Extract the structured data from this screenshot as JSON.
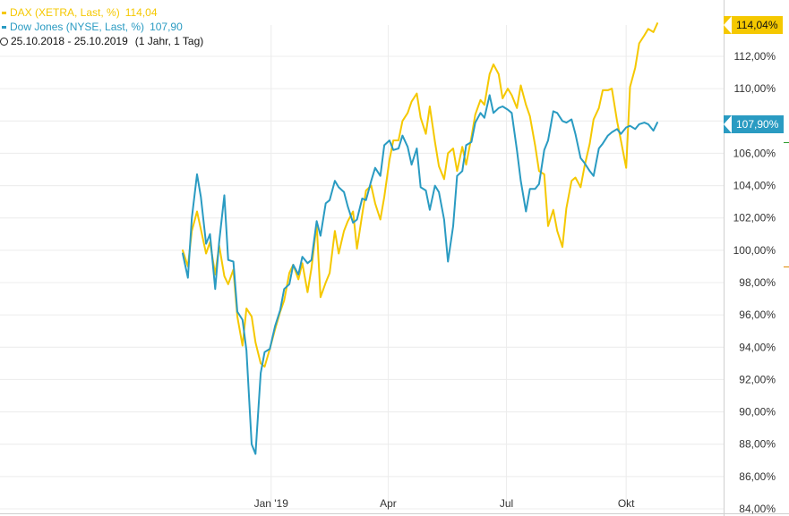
{
  "legend": {
    "series": [
      {
        "label": "DAX (XETRA, Last, %)",
        "value": "114,04",
        "color": "#f5c800"
      },
      {
        "label": "Dow Jones (NYSE, Last, %)",
        "value": "107,90",
        "color": "#2a9bc2"
      }
    ],
    "period": "25.10.2018 - 25.10.2019",
    "span": "(1 Jahr, 1 Tag)"
  },
  "tags": {
    "dax": "114,04%",
    "dow": "107,90%"
  },
  "chart_data": {
    "type": "line",
    "ylim": [
      84,
      114
    ],
    "yticks": [
      "84,00%",
      "86,00%",
      "88,00%",
      "90,00%",
      "92,00%",
      "94,00%",
      "96,00%",
      "98,00%",
      "100,00%",
      "102,00%",
      "104,00%",
      "106,00%",
      "108,00%",
      "110,00%",
      "112,00%"
    ],
    "xticks": [
      "Jan '19",
      "Apr",
      "Jul",
      "Okt"
    ],
    "grid": true,
    "series": [
      {
        "name": "DAX (XETRA, Last, %)",
        "color": "#f5c800",
        "x": [
          "2018-10-25",
          "2018-10-29",
          "2018-11-01",
          "2018-11-05",
          "2018-11-08",
          "2018-11-12",
          "2018-11-15",
          "2018-11-19",
          "2018-11-22",
          "2018-11-26",
          "2018-11-29",
          "2018-12-03",
          "2018-12-06",
          "2018-12-10",
          "2018-12-13",
          "2018-12-17",
          "2018-12-20",
          "2018-12-24",
          "2018-12-27",
          "2018-12-31",
          "2019-01-04",
          "2019-01-08",
          "2019-01-11",
          "2019-01-15",
          "2019-01-18",
          "2019-01-22",
          "2019-01-25",
          "2019-01-29",
          "2019-02-01",
          "2019-02-05",
          "2019-02-08",
          "2019-02-12",
          "2019-02-15",
          "2019-02-19",
          "2019-02-22",
          "2019-02-26",
          "2019-03-01",
          "2019-03-05",
          "2019-03-08",
          "2019-03-12",
          "2019-03-15",
          "2019-03-19",
          "2019-03-22",
          "2019-03-26",
          "2019-03-29",
          "2019-04-02",
          "2019-04-05",
          "2019-04-09",
          "2019-04-12",
          "2019-04-16",
          "2019-04-19",
          "2019-04-23",
          "2019-04-26",
          "2019-04-30",
          "2019-05-03",
          "2019-05-07",
          "2019-05-10",
          "2019-05-14",
          "2019-05-17",
          "2019-05-21",
          "2019-05-24",
          "2019-05-28",
          "2019-05-31",
          "2019-06-04",
          "2019-06-07",
          "2019-06-11",
          "2019-06-14",
          "2019-06-18",
          "2019-06-21",
          "2019-06-25",
          "2019-06-28",
          "2019-07-02",
          "2019-07-05",
          "2019-07-09",
          "2019-07-12",
          "2019-07-16",
          "2019-07-19",
          "2019-07-23",
          "2019-07-26",
          "2019-07-30",
          "2019-08-02",
          "2019-08-06",
          "2019-08-09",
          "2019-08-13",
          "2019-08-16",
          "2019-08-20",
          "2019-08-23",
          "2019-08-27",
          "2019-08-30",
          "2019-09-03",
          "2019-09-06",
          "2019-09-10",
          "2019-09-13",
          "2019-09-17",
          "2019-09-20",
          "2019-09-24",
          "2019-09-27",
          "2019-10-01",
          "2019-10-04",
          "2019-10-08",
          "2019-10-11",
          "2019-10-15",
          "2019-10-18",
          "2019-10-22",
          "2019-10-25"
        ],
        "values": [
          100.0,
          99.0,
          101.2,
          102.4,
          101.3,
          99.8,
          100.5,
          98.5,
          100.3,
          98.4,
          97.9,
          98.8,
          95.9,
          94.1,
          96.4,
          95.9,
          94.3,
          93.0,
          92.8,
          93.9,
          95.1,
          96.2,
          96.9,
          98.6,
          99.1,
          98.2,
          99.2,
          97.4,
          98.9,
          101.6,
          97.1,
          98.0,
          98.6,
          101.2,
          99.8,
          101.2,
          101.8,
          102.4,
          100.1,
          102.2,
          103.7,
          104.0,
          102.9,
          101.9,
          103.3,
          105.6,
          106.8,
          106.8,
          108.0,
          108.5,
          109.2,
          109.7,
          108.2,
          107.2,
          108.9,
          106.7,
          105.2,
          104.4,
          106.0,
          106.3,
          104.9,
          106.4,
          105.3,
          107.0,
          108.4,
          109.3,
          109.0,
          110.9,
          111.5,
          110.9,
          109.4,
          110.0,
          109.6,
          108.8,
          110.2,
          109.0,
          108.3,
          106.5,
          104.9,
          104.7,
          101.5,
          102.5,
          101.2,
          100.2,
          102.6,
          104.3,
          104.5,
          103.9,
          105.2,
          106.6,
          108.1,
          108.8,
          109.9,
          109.9,
          110.0,
          108.0,
          106.8,
          105.1,
          110.1,
          111.3,
          112.8,
          113.3,
          113.7,
          113.5,
          114.04
        ]
      },
      {
        "name": "Dow Jones (NYSE, Last, %)",
        "color": "#2a9bc2",
        "x": [
          "2018-10-25",
          "2018-10-29",
          "2018-11-01",
          "2018-11-05",
          "2018-11-08",
          "2018-11-12",
          "2018-11-15",
          "2018-11-19",
          "2018-11-22",
          "2018-11-26",
          "2018-11-29",
          "2018-12-03",
          "2018-12-06",
          "2018-12-10",
          "2018-12-13",
          "2018-12-17",
          "2018-12-20",
          "2018-12-24",
          "2018-12-27",
          "2018-12-31",
          "2019-01-04",
          "2019-01-08",
          "2019-01-11",
          "2019-01-15",
          "2019-01-18",
          "2019-01-22",
          "2019-01-25",
          "2019-01-29",
          "2019-02-01",
          "2019-02-05",
          "2019-02-08",
          "2019-02-12",
          "2019-02-15",
          "2019-02-19",
          "2019-02-22",
          "2019-02-26",
          "2019-03-01",
          "2019-03-05",
          "2019-03-08",
          "2019-03-12",
          "2019-03-15",
          "2019-03-19",
          "2019-03-22",
          "2019-03-26",
          "2019-03-29",
          "2019-04-02",
          "2019-04-05",
          "2019-04-09",
          "2019-04-12",
          "2019-04-16",
          "2019-04-19",
          "2019-04-23",
          "2019-04-26",
          "2019-04-30",
          "2019-05-03",
          "2019-05-07",
          "2019-05-10",
          "2019-05-14",
          "2019-05-17",
          "2019-05-21",
          "2019-05-24",
          "2019-05-28",
          "2019-05-31",
          "2019-06-04",
          "2019-06-07",
          "2019-06-11",
          "2019-06-14",
          "2019-06-18",
          "2019-06-21",
          "2019-06-25",
          "2019-06-28",
          "2019-07-02",
          "2019-07-05",
          "2019-07-09",
          "2019-07-12",
          "2019-07-16",
          "2019-07-19",
          "2019-07-23",
          "2019-07-26",
          "2019-07-30",
          "2019-08-02",
          "2019-08-06",
          "2019-08-09",
          "2019-08-13",
          "2019-08-16",
          "2019-08-20",
          "2019-08-23",
          "2019-08-27",
          "2019-08-30",
          "2019-09-03",
          "2019-09-06",
          "2019-09-10",
          "2019-09-13",
          "2019-09-17",
          "2019-09-20",
          "2019-09-24",
          "2019-09-27",
          "2019-10-01",
          "2019-10-04",
          "2019-10-08",
          "2019-10-11",
          "2019-10-15",
          "2019-10-18",
          "2019-10-22",
          "2019-10-25"
        ],
        "values": [
          99.8,
          98.3,
          102.0,
          104.7,
          103.3,
          100.4,
          101.0,
          97.6,
          100.5,
          103.4,
          99.4,
          99.3,
          96.2,
          95.7,
          93.8,
          88.0,
          87.4,
          92.4,
          93.7,
          93.9,
          95.3,
          96.3,
          97.6,
          97.9,
          99.1,
          98.5,
          99.6,
          99.2,
          99.4,
          101.8,
          100.9,
          102.9,
          103.1,
          104.3,
          103.9,
          103.6,
          102.7,
          101.7,
          101.9,
          103.2,
          103.1,
          104.3,
          105.1,
          104.6,
          106.5,
          106.8,
          106.2,
          106.3,
          107.1,
          106.4,
          105.3,
          106.3,
          103.9,
          103.7,
          102.5,
          104.0,
          103.6,
          101.9,
          99.3,
          101.5,
          104.6,
          104.9,
          106.5,
          106.7,
          107.9,
          108.5,
          108.2,
          109.6,
          108.5,
          108.8,
          108.9,
          108.7,
          108.5,
          106.2,
          104.3,
          102.4,
          103.8,
          103.8,
          104.1,
          106.2,
          106.8,
          108.6,
          108.5,
          108.0,
          107.9,
          108.1,
          107.2,
          105.7,
          105.4,
          104.9,
          104.6,
          106.3,
          106.6,
          107.1,
          107.3,
          107.5,
          107.2,
          107.6,
          107.7,
          107.5,
          107.8,
          107.9,
          107.8,
          107.4,
          107.9
        ]
      }
    ]
  }
}
